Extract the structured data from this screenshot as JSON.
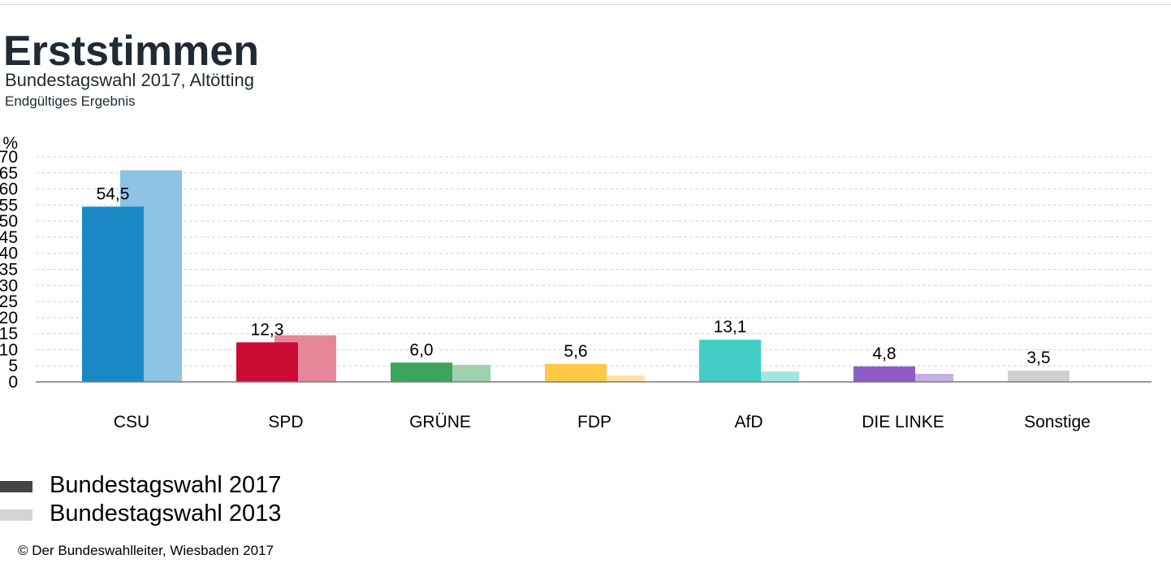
{
  "header": {
    "title": "Erststimmen",
    "subtitle": "Bundestagswahl 2017, Altötting",
    "status": "Endgültiges Ergebnis"
  },
  "chart_data": {
    "type": "bar",
    "title": "Erststimmen",
    "subtitle": "Bundestagswahl 2017, Altötting",
    "ylabel": "%",
    "ylim": [
      0,
      70
    ],
    "yticks": [
      "0",
      "5",
      "10",
      "15",
      "20",
      "25",
      "30",
      "35",
      "40",
      "45",
      "50",
      "55",
      "60",
      "65",
      "70"
    ],
    "grid": true,
    "legend_position": "bottom-left",
    "categories": [
      "CSU",
      "SPD",
      "GRÜNE",
      "FDP",
      "AfD",
      "DIE LINKE",
      "Sonstige"
    ],
    "series": [
      {
        "name": "Bundestagswahl 2017",
        "values": [
          54.5,
          12.3,
          6.0,
          5.6,
          13.1,
          4.8,
          3.5
        ],
        "labels": [
          "54,5",
          "12,3",
          "6,0",
          "5,6",
          "13,1",
          "4,8",
          "3,5"
        ]
      },
      {
        "name": "Bundestagswahl 2013",
        "values": [
          65.8,
          14.5,
          5.3,
          2.0,
          3.2,
          2.5,
          null
        ]
      }
    ],
    "colors_2017": [
      "#1a88c5",
      "#cc0c34",
      "#3ba55b",
      "#fec944",
      "#43ccc6",
      "#8e5cc5",
      "#cfcfcf"
    ],
    "colors_2013": [
      "#8dc3e4",
      "#e58798",
      "#9dd2ad",
      "#fee4a2",
      "#a1e6e2",
      "#c6aee2",
      "#e8e8e8"
    ]
  },
  "legend": {
    "items": [
      {
        "label": "Bundestagswahl 2017",
        "color": "#444444"
      },
      {
        "label": "Bundestagswahl 2013",
        "color": "#d4d4d4"
      }
    ]
  },
  "footer": {
    "copyright": "© Der Bundeswahlleiter, Wiesbaden 2017"
  }
}
